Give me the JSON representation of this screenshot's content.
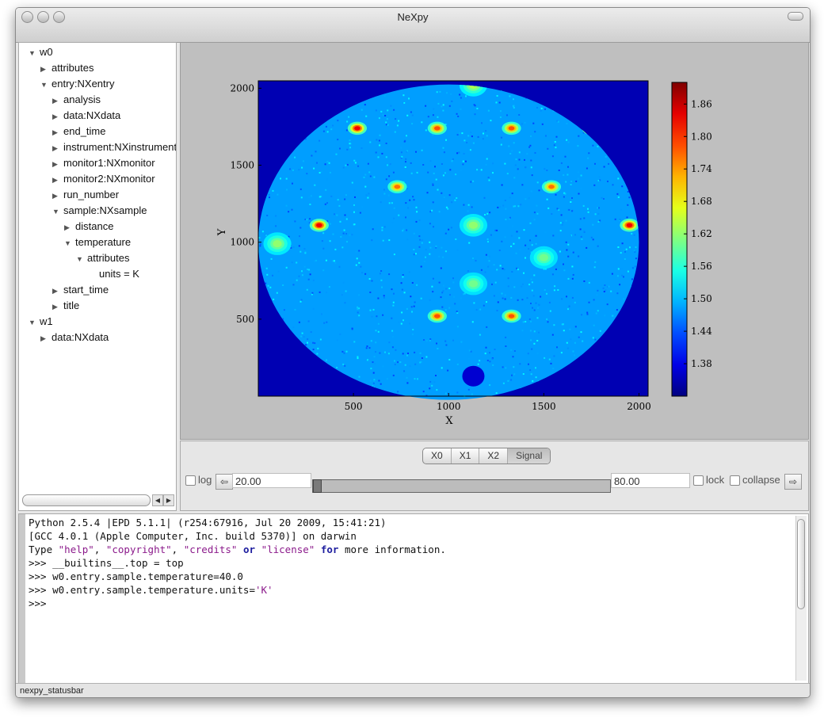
{
  "window": {
    "title": "NeXpy"
  },
  "tree": {
    "items": [
      {
        "label": "w0",
        "depth": 0,
        "expanded": true
      },
      {
        "label": "attributes",
        "depth": 1,
        "expanded": false
      },
      {
        "label": "entry:NXentry",
        "depth": 1,
        "expanded": true
      },
      {
        "label": "analysis",
        "depth": 2,
        "expanded": false
      },
      {
        "label": "data:NXdata",
        "depth": 2,
        "expanded": false
      },
      {
        "label": "end_time",
        "depth": 2,
        "expanded": false
      },
      {
        "label": "instrument:NXinstrument",
        "depth": 2,
        "expanded": false
      },
      {
        "label": "monitor1:NXmonitor",
        "depth": 2,
        "expanded": false
      },
      {
        "label": "monitor2:NXmonitor",
        "depth": 2,
        "expanded": false
      },
      {
        "label": "run_number",
        "depth": 2,
        "expanded": false
      },
      {
        "label": "sample:NXsample",
        "depth": 2,
        "expanded": true
      },
      {
        "label": "distance",
        "depth": 3,
        "expanded": false
      },
      {
        "label": "temperature",
        "depth": 3,
        "expanded": true
      },
      {
        "label": "attributes",
        "depth": 4,
        "expanded": true
      },
      {
        "label": "units = K",
        "depth": 5,
        "leaf": true
      },
      {
        "label": "start_time",
        "depth": 2,
        "expanded": false
      },
      {
        "label": "title",
        "depth": 2,
        "expanded": false
      },
      {
        "label": "w1",
        "depth": 0,
        "expanded": true
      },
      {
        "label": "data:NXdata",
        "depth": 1,
        "expanded": false
      }
    ]
  },
  "chart_data": {
    "type": "heatmap",
    "title": "",
    "xlabel": "X",
    "ylabel": "Y",
    "xlim": [
      0,
      2048
    ],
    "ylim": [
      0,
      2048
    ],
    "x_ticks": [
      500,
      1000,
      1500,
      2000
    ],
    "y_ticks": [
      500,
      1000,
      1500,
      2000
    ],
    "colormap": "jet",
    "colorbar": {
      "range": [
        1.32,
        1.9
      ],
      "ticks": [
        1.38,
        1.44,
        1.5,
        1.56,
        1.62,
        1.68,
        1.74,
        1.8,
        1.86
      ]
    },
    "detector_circle": {
      "cx": 1000,
      "cy": 1000,
      "rx": 1000,
      "ry": 1024
    },
    "peaks": [
      {
        "x": 520,
        "y": 1740,
        "level": 0.95
      },
      {
        "x": 940,
        "y": 1740,
        "level": 0.8
      },
      {
        "x": 1330,
        "y": 1740,
        "level": 0.8
      },
      {
        "x": 1750,
        "y": 1740,
        "level": 1.0
      },
      {
        "x": 730,
        "y": 1360,
        "level": 0.75
      },
      {
        "x": 1540,
        "y": 1360,
        "level": 0.75
      },
      {
        "x": 320,
        "y": 1110,
        "level": 0.95
      },
      {
        "x": 1950,
        "y": 1110,
        "level": 0.95
      },
      {
        "x": 940,
        "y": 520,
        "level": 0.8
      },
      {
        "x": 1330,
        "y": 520,
        "level": 0.8
      },
      {
        "x": 1130,
        "y": 1110,
        "level": 0.35
      },
      {
        "x": 1130,
        "y": 730,
        "level": 0.3
      },
      {
        "x": 1130,
        "y": 2020,
        "level": 0.4
      },
      {
        "x": 100,
        "y": 990,
        "level": 0.35
      },
      {
        "x": 1500,
        "y": 900,
        "level": 0.3
      }
    ]
  },
  "controls": {
    "tabs": [
      "X0",
      "X1",
      "X2",
      "Signal"
    ],
    "active_tab": "Signal",
    "log_label": "log",
    "min_value": "20.00",
    "max_value": "80.00",
    "slider_fraction": 0.0,
    "lock_label": "lock",
    "collapse_label": "collapse",
    "left_arrow": "⇦",
    "right_arrow": "⇨"
  },
  "console": {
    "lines": [
      [
        {
          "t": "Python 2.5.4 |EPD 5.1.1| (r254:67916, Jul 20 2009, 15:41:21)"
        }
      ],
      [
        {
          "t": "[GCC 4.0.1 (Apple Computer, Inc. build 5370)] on darwin"
        }
      ],
      [
        {
          "t": "Type "
        },
        {
          "t": "\"help\"",
          "c": "str"
        },
        {
          "t": ", "
        },
        {
          "t": "\"copyright\"",
          "c": "str"
        },
        {
          "t": ", "
        },
        {
          "t": "\"credits\"",
          "c": "str"
        },
        {
          "t": " "
        },
        {
          "t": "or",
          "c": "kw"
        },
        {
          "t": " "
        },
        {
          "t": "\"license\"",
          "c": "str"
        },
        {
          "t": " "
        },
        {
          "t": "for",
          "c": "kw"
        },
        {
          "t": " more information."
        }
      ],
      [
        {
          "t": ">>> __builtins__.top = top"
        }
      ],
      [
        {
          "t": ">>> w0.entry.sample.temperature=40.0"
        }
      ],
      [
        {
          "t": ">>> w0.entry.sample.temperature.units="
        },
        {
          "t": "'K'",
          "c": "str"
        }
      ],
      [
        {
          "t": ">>> "
        }
      ]
    ]
  },
  "statusbar": {
    "text": "nexpy_statusbar"
  }
}
